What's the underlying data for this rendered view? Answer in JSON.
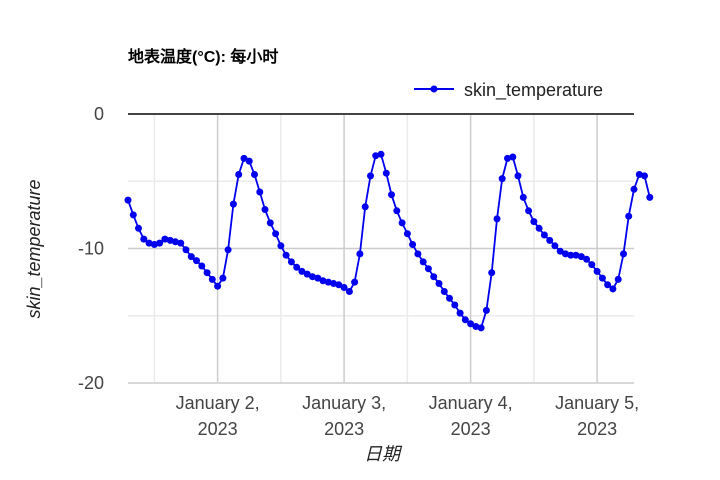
{
  "chart_data": {
    "type": "line",
    "title": "地表温度(°C): 每小时",
    "xlabel": "日期",
    "ylabel": "skin_temperature",
    "ylim": [
      -20,
      0
    ],
    "yticks": [
      0,
      -10,
      -20
    ],
    "xlim": [
      "2023-01-01 07:00",
      "2023-01-05 07:00"
    ],
    "xticks": [
      {
        "value": "2023-01-02 00:00",
        "label_line1": "January 2,",
        "label_line2": "2023"
      },
      {
        "value": "2023-01-03 00:00",
        "label_line1": "January 3,",
        "label_line2": "2023"
      },
      {
        "value": "2023-01-04 00:00",
        "label_line1": "January 4,",
        "label_line2": "2023"
      },
      {
        "value": "2023-01-05 00:00",
        "label_line1": "January 5,",
        "label_line2": "2023"
      }
    ],
    "grid": true,
    "legend_position": "top-right",
    "colors": {
      "series": "#0000ee",
      "axis": "#444444",
      "grid_major": "#cccccc",
      "grid_minor": "#ebebeb"
    },
    "series": [
      {
        "name": "skin_temperature",
        "start": "2023-01-01 07:00",
        "interval_hours": 1,
        "values": [
          -6.4,
          -7.5,
          -8.5,
          -9.3,
          -9.6,
          -9.7,
          -9.6,
          -9.3,
          -9.4,
          -9.5,
          -9.6,
          -10.1,
          -10.6,
          -10.9,
          -11.3,
          -11.8,
          -12.3,
          -12.8,
          -12.2,
          -10.1,
          -6.7,
          -4.5,
          -3.3,
          -3.5,
          -4.5,
          -5.8,
          -7.1,
          -8.1,
          -8.9,
          -9.8,
          -10.5,
          -11.0,
          -11.4,
          -11.7,
          -11.9,
          -12.1,
          -12.2,
          -12.4,
          -12.5,
          -12.6,
          -12.7,
          -12.9,
          -13.2,
          -12.5,
          -10.4,
          -6.9,
          -4.6,
          -3.1,
          -3.0,
          -4.4,
          -6.0,
          -7.2,
          -8.1,
          -8.9,
          -9.7,
          -10.4,
          -11.0,
          -11.5,
          -12.1,
          -12.6,
          -13.2,
          -13.7,
          -14.2,
          -14.8,
          -15.3,
          -15.6,
          -15.8,
          -15.9,
          -14.6,
          -11.8,
          -7.8,
          -4.8,
          -3.3,
          -3.2,
          -4.6,
          -6.2,
          -7.2,
          -8.0,
          -8.5,
          -9.0,
          -9.4,
          -9.8,
          -10.2,
          -10.4,
          -10.5,
          -10.5,
          -10.6,
          -10.8,
          -11.2,
          -11.7,
          -12.2,
          -12.7,
          -13.0,
          -12.3,
          -10.4,
          -7.6,
          -5.6,
          -4.5,
          -4.6,
          -6.2
        ]
      }
    ]
  }
}
